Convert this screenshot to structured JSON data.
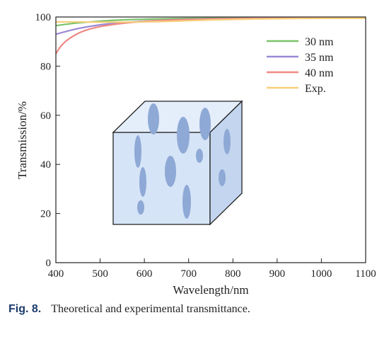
{
  "chart_data": {
    "type": "line",
    "xlabel": "Wavelength/nm",
    "ylabel": "Transmission/%",
    "xlim": [
      400,
      1100
    ],
    "ylim": [
      0,
      100
    ],
    "xticks": [
      400,
      500,
      600,
      700,
      800,
      900,
      1000,
      1100
    ],
    "yticks": [
      0,
      20,
      40,
      60,
      80,
      100
    ],
    "legend_position": "top-right",
    "grid": false,
    "series": [
      {
        "name": "30 nm",
        "color": "#7cc36b",
        "x": [
          400,
          450,
          500,
          550,
          600,
          650,
          700,
          750,
          800,
          850,
          900,
          950,
          1000,
          1050,
          1100
        ],
        "y": [
          96.5,
          97.6,
          98.3,
          98.8,
          99.1,
          99.3,
          99.45,
          99.55,
          99.62,
          99.68,
          99.72,
          99.75,
          99.78,
          99.8,
          99.82
        ]
      },
      {
        "name": "35 nm",
        "color": "#9b88d6",
        "x": [
          400,
          450,
          500,
          550,
          600,
          650,
          700,
          750,
          800,
          850,
          900,
          950,
          1000,
          1050,
          1100
        ],
        "y": [
          93.0,
          95.3,
          96.8,
          97.7,
          98.3,
          98.75,
          99.05,
          99.25,
          99.4,
          99.5,
          99.58,
          99.64,
          99.68,
          99.72,
          99.75
        ]
      },
      {
        "name": "40 nm",
        "color": "#ee8a86",
        "x": [
          400,
          410,
          425,
          450,
          475,
          500,
          550,
          600,
          650,
          700,
          750,
          800,
          850,
          900,
          1000,
          1100
        ],
        "y": [
          85.0,
          87.8,
          90.5,
          93.3,
          95.0,
          96.1,
          97.4,
          98.2,
          98.7,
          99.0,
          99.2,
          99.35,
          99.45,
          99.52,
          99.62,
          99.68
        ]
      },
      {
        "name": "Exp.",
        "color": "#f8cf7a",
        "x": [
          400,
          450,
          500,
          550,
          600,
          650,
          700,
          750,
          800,
          850,
          900,
          950,
          1000,
          1050,
          1100
        ],
        "y": [
          98.0,
          98.0,
          97.9,
          97.9,
          98.0,
          98.2,
          98.5,
          98.8,
          99.0,
          99.2,
          99.3,
          99.4,
          99.45,
          99.5,
          99.5
        ]
      }
    ]
  },
  "caption": {
    "fig_label": "Fig. 8.",
    "text": "Theoretical and experimental transmittance."
  },
  "inset": {
    "cube_front_color": "#d6e4f7",
    "cube_side_color": "#c4d6ef",
    "cube_top_color": "#e4eefb",
    "pore_color": "#8fa9d6"
  }
}
